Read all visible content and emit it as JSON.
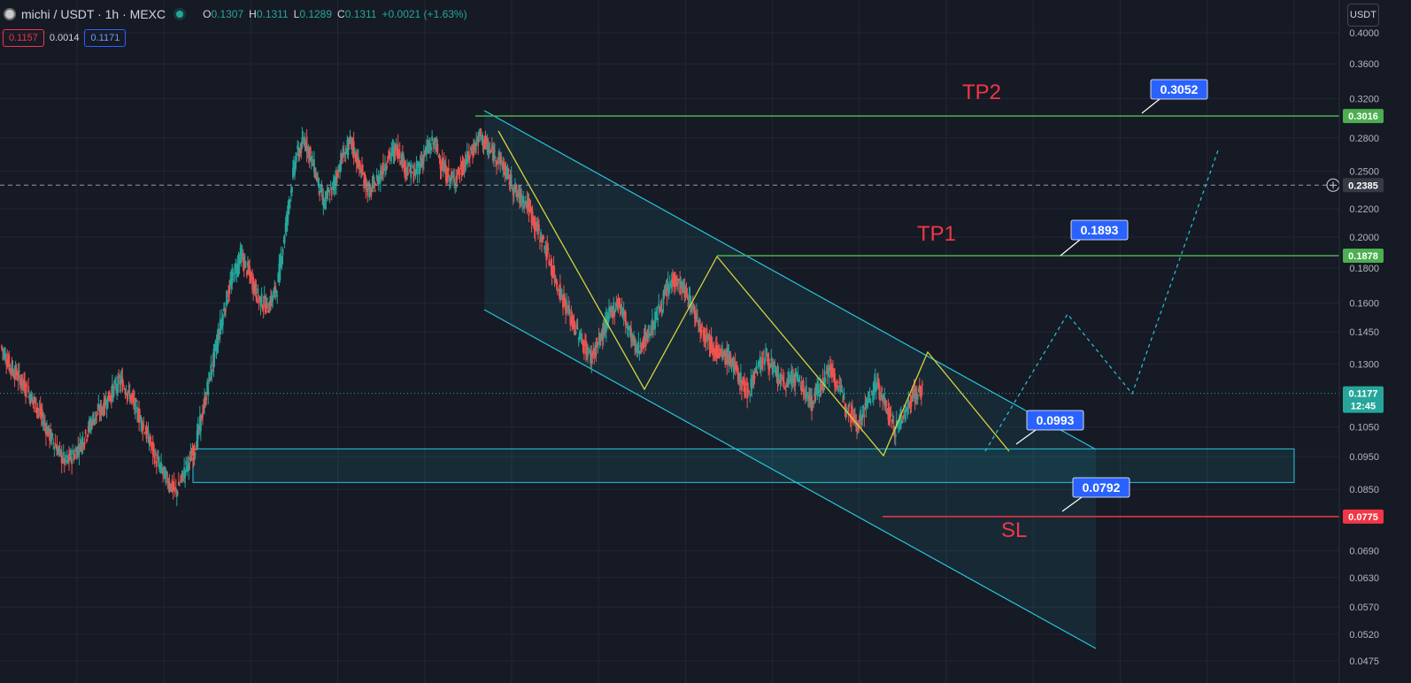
{
  "header": {
    "symbol_title": "michi / USDT · 1h · MEXC",
    "ohlc": [
      {
        "key": "O",
        "value": "0.1307"
      },
      {
        "key": "H",
        "value": "0.1311"
      },
      {
        "key": "L",
        "value": "0.1289"
      },
      {
        "key": "C",
        "value": "0.1311"
      }
    ],
    "change": "+0.0021 (+1.63%)",
    "sell_price": "0.1157",
    "spread": "0.0014",
    "buy_price": "0.1171",
    "currency_button": "USDT"
  },
  "colors": {
    "background": "#161a25",
    "up": "#26a69a",
    "down": "#ef5350",
    "channel": "#26c6da",
    "zigzag": "#d4d43a",
    "target_line": "#4caf50",
    "stop_line": "#f23645",
    "callout": "#2962ff"
  },
  "chart_data": {
    "type": "candlestick",
    "y_scale": "log",
    "ylim": [
      0.0455,
      0.41
    ],
    "y_ticks": [
      "0.4000",
      "0.3600",
      "0.3200",
      "0.2800",
      "0.2500",
      "0.2200",
      "0.2000",
      "0.1800",
      "0.1600",
      "0.1450",
      "0.1300",
      "0.1177",
      "0.1050",
      "0.0950",
      "0.0850",
      "0.0775",
      "0.0690",
      "0.0630",
      "0.0570",
      "0.0520",
      "0.0475"
    ],
    "axis_tags": {
      "tp2": "0.3016",
      "current_crosshair": "0.2385",
      "tp1": "0.1878",
      "last_price": "0.1177",
      "countdown": "12:45",
      "sl": "0.0775"
    },
    "labels": {
      "tp2": "TP2",
      "tp1": "TP1",
      "sl": "SL"
    },
    "callouts": [
      "0.3052",
      "0.1893",
      "0.0993",
      "0.0792"
    ],
    "price_path": [
      [
        0.138,
        0.129
      ],
      [
        0.129,
        0.124
      ],
      [
        0.124,
        0.118
      ],
      [
        0.118,
        0.112
      ],
      [
        0.112,
        0.104
      ],
      [
        0.104,
        0.098
      ],
      [
        0.098,
        0.093
      ],
      [
        0.093,
        0.096
      ],
      [
        0.096,
        0.101
      ],
      [
        0.101,
        0.108
      ],
      [
        0.108,
        0.112
      ],
      [
        0.112,
        0.118
      ],
      [
        0.118,
        0.123
      ],
      [
        0.123,
        0.117
      ],
      [
        0.117,
        0.109
      ],
      [
        0.109,
        0.101
      ],
      [
        0.101,
        0.093
      ],
      [
        0.093,
        0.088
      ],
      [
        0.088,
        0.084
      ],
      [
        0.084,
        0.091
      ],
      [
        0.091,
        0.097
      ],
      [
        0.097,
        0.112
      ],
      [
        0.112,
        0.131
      ],
      [
        0.131,
        0.152
      ],
      [
        0.152,
        0.172
      ],
      [
        0.172,
        0.188
      ],
      [
        0.188,
        0.176
      ],
      [
        0.176,
        0.162
      ],
      [
        0.162,
        0.158
      ],
      [
        0.158,
        0.169
      ],
      [
        0.169,
        0.212
      ],
      [
        0.212,
        0.262
      ],
      [
        0.262,
        0.278
      ],
      [
        0.278,
        0.253
      ],
      [
        0.253,
        0.224
      ],
      [
        0.224,
        0.236
      ],
      [
        0.236,
        0.262
      ],
      [
        0.262,
        0.276
      ],
      [
        0.276,
        0.251
      ],
      [
        0.251,
        0.232
      ],
      [
        0.232,
        0.245
      ],
      [
        0.245,
        0.262
      ],
      [
        0.262,
        0.271
      ],
      [
        0.271,
        0.252
      ],
      [
        0.252,
        0.248
      ],
      [
        0.248,
        0.266
      ],
      [
        0.266,
        0.276
      ],
      [
        0.276,
        0.252
      ],
      [
        0.252,
        0.242
      ],
      [
        0.242,
        0.252
      ],
      [
        0.252,
        0.266
      ],
      [
        0.266,
        0.282
      ],
      [
        0.282,
        0.268
      ],
      [
        0.268,
        0.262
      ],
      [
        0.262,
        0.246
      ],
      [
        0.246,
        0.231
      ],
      [
        0.231,
        0.226
      ],
      [
        0.226,
        0.208
      ],
      [
        0.208,
        0.194
      ],
      [
        0.194,
        0.176
      ],
      [
        0.176,
        0.162
      ],
      [
        0.162,
        0.15
      ],
      [
        0.15,
        0.141
      ],
      [
        0.141,
        0.133
      ],
      [
        0.133,
        0.141
      ],
      [
        0.141,
        0.153
      ],
      [
        0.153,
        0.161
      ],
      [
        0.161,
        0.148
      ],
      [
        0.148,
        0.136
      ],
      [
        0.136,
        0.142
      ],
      [
        0.142,
        0.151
      ],
      [
        0.151,
        0.163
      ],
      [
        0.163,
        0.174
      ],
      [
        0.174,
        0.168
      ],
      [
        0.168,
        0.158
      ],
      [
        0.158,
        0.147
      ],
      [
        0.147,
        0.14
      ],
      [
        0.14,
        0.134
      ],
      [
        0.134,
        0.133
      ],
      [
        0.133,
        0.125
      ],
      [
        0.125,
        0.118
      ],
      [
        0.118,
        0.128
      ],
      [
        0.128,
        0.134
      ],
      [
        0.134,
        0.126
      ],
      [
        0.126,
        0.121
      ],
      [
        0.121,
        0.125
      ],
      [
        0.125,
        0.12
      ],
      [
        0.12,
        0.114
      ],
      [
        0.114,
        0.122
      ],
      [
        0.122,
        0.128
      ],
      [
        0.128,
        0.119
      ],
      [
        0.119,
        0.112
      ],
      [
        0.112,
        0.106
      ],
      [
        0.106,
        0.114
      ],
      [
        0.114,
        0.122
      ],
      [
        0.122,
        0.113
      ],
      [
        0.113,
        0.104
      ],
      [
        0.104,
        0.11
      ],
      [
        0.11,
        0.117
      ],
      [
        0.117,
        0.119
      ]
    ],
    "annotations": {
      "channel_upper": [
        [
          547,
          125
        ],
        [
          1238,
          508
        ]
      ],
      "channel_lower": [
        [
          547,
          350
        ],
        [
          1238,
          733
        ]
      ],
      "zone": {
        "top": 0.0975,
        "bottom": 0.087
      },
      "zigzag": [
        [
          563,
          148
        ],
        [
          728,
          440
        ],
        [
          810,
          290
        ],
        [
          998,
          515
        ],
        [
          1048,
          398
        ],
        [
          1140,
          510
        ]
      ],
      "projection": [
        [
          1113,
          510
        ],
        [
          1206,
          355
        ],
        [
          1279,
          445
        ],
        [
          1376,
          170
        ]
      ]
    }
  }
}
